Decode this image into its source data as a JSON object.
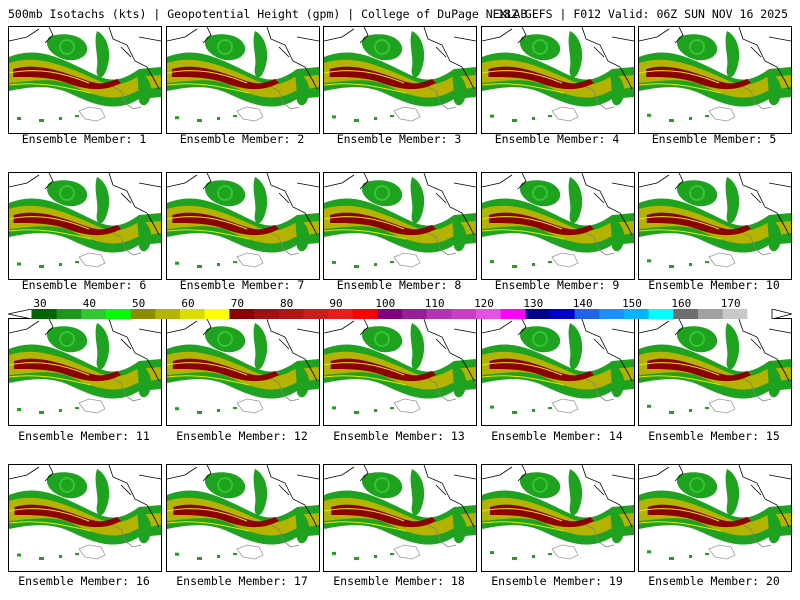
{
  "header": {
    "left": "500mb Isotachs (kts) | Geopotential Height (gpm) | College of DuPage NEXLAB",
    "right": "18Z GEFS | F012 Valid: 06Z SUN NOV 16 2025"
  },
  "members": [
    {
      "label": "Ensemble Member: 1"
    },
    {
      "label": "Ensemble Member: 2"
    },
    {
      "label": "Ensemble Member: 3"
    },
    {
      "label": "Ensemble Member: 4"
    },
    {
      "label": "Ensemble Member: 5"
    },
    {
      "label": "Ensemble Member: 6"
    },
    {
      "label": "Ensemble Member: 7"
    },
    {
      "label": "Ensemble Member: 8"
    },
    {
      "label": "Ensemble Member: 9"
    },
    {
      "label": "Ensemble Member: 10"
    },
    {
      "label": "Ensemble Member: 11"
    },
    {
      "label": "Ensemble Member: 12"
    },
    {
      "label": "Ensemble Member: 13"
    },
    {
      "label": "Ensemble Member: 14"
    },
    {
      "label": "Ensemble Member: 15"
    },
    {
      "label": "Ensemble Member: 16"
    },
    {
      "label": "Ensemble Member: 17"
    },
    {
      "label": "Ensemble Member: 18"
    },
    {
      "label": "Ensemble Member: 19"
    },
    {
      "label": "Ensemble Member: 20"
    }
  ],
  "colorbar": {
    "labels": [
      "30",
      "40",
      "50",
      "60",
      "70",
      "80",
      "90",
      "100",
      "110",
      "120",
      "130",
      "140",
      "150",
      "160",
      "170"
    ],
    "colors": [
      "#006400",
      "#1e961e",
      "#32c832",
      "#00ff00",
      "#8c8c00",
      "#b4b400",
      "#dcdc00",
      "#ffff00",
      "#8b0000",
      "#a01010",
      "#b41414",
      "#c81e1e",
      "#e61e1e",
      "#ff0000",
      "#800080",
      "#961e96",
      "#b432b4",
      "#c83cc8",
      "#e650e6",
      "#ff00ff",
      "#00008b",
      "#0000cd",
      "#1e64e6",
      "#1e90ff",
      "#00b4ff",
      "#00ffff",
      "#6e6e6e",
      "#a0a0a0",
      "#c8c8c8",
      "#ffffff"
    ]
  },
  "palette": {
    "weak": "#1fa21f",
    "light": "#32c832",
    "mid": "#b4b400",
    "strong": "#8b0000"
  }
}
